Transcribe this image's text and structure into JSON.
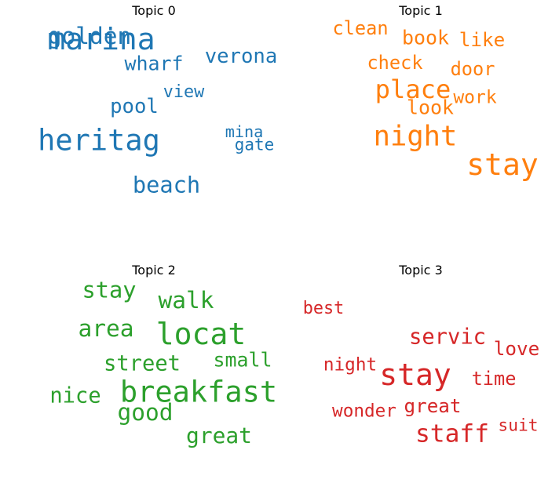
{
  "chart_data": [
    {
      "type": "wordcloud",
      "title": "Topic 0",
      "color": "#1f77b4",
      "words": [
        {
          "text": "marina",
          "weight": 1.0
        },
        {
          "text": "heritag",
          "weight": 0.98
        },
        {
          "text": "golden",
          "weight": 0.82
        },
        {
          "text": "beach",
          "weight": 0.8
        },
        {
          "text": "verona",
          "weight": 0.72
        },
        {
          "text": "pool",
          "weight": 0.72
        },
        {
          "text": "wharf",
          "weight": 0.7
        },
        {
          "text": "view",
          "weight": 0.6
        },
        {
          "text": "gate",
          "weight": 0.57
        },
        {
          "text": "mina",
          "weight": 0.54
        }
      ]
    },
    {
      "type": "wordcloud",
      "title": "Topic 1",
      "color": "#ff7f0e",
      "words": [
        {
          "text": "stay",
          "weight": 1.0
        },
        {
          "text": "night",
          "weight": 0.95
        },
        {
          "text": "place",
          "weight": 0.88
        },
        {
          "text": "book",
          "weight": 0.7
        },
        {
          "text": "look",
          "weight": 0.7
        },
        {
          "text": "like",
          "weight": 0.68
        },
        {
          "text": "clean",
          "weight": 0.66
        },
        {
          "text": "check",
          "weight": 0.66
        },
        {
          "text": "door",
          "weight": 0.66
        },
        {
          "text": "work",
          "weight": 0.64
        }
      ]
    },
    {
      "type": "wordcloud",
      "title": "Topic 2",
      "color": "#2ca02c",
      "words": [
        {
          "text": "locat",
          "weight": 1.0
        },
        {
          "text": "breakfast",
          "weight": 0.98
        },
        {
          "text": "walk",
          "weight": 0.82
        },
        {
          "text": "area",
          "weight": 0.82
        },
        {
          "text": "good",
          "weight": 0.82
        },
        {
          "text": "stay",
          "weight": 0.8
        },
        {
          "text": "great",
          "weight": 0.78
        },
        {
          "text": "street",
          "weight": 0.76
        },
        {
          "text": "nice",
          "weight": 0.76
        },
        {
          "text": "small",
          "weight": 0.7
        }
      ]
    },
    {
      "type": "wordcloud",
      "title": "Topic 3",
      "color": "#d62728",
      "words": [
        {
          "text": "stay",
          "weight": 1.0
        },
        {
          "text": "staff",
          "weight": 0.86
        },
        {
          "text": "servic",
          "weight": 0.76
        },
        {
          "text": "great",
          "weight": 0.68
        },
        {
          "text": "love",
          "weight": 0.68
        },
        {
          "text": "time",
          "weight": 0.66
        },
        {
          "text": "wonder",
          "weight": 0.63
        },
        {
          "text": "night",
          "weight": 0.63
        },
        {
          "text": "best",
          "weight": 0.6
        },
        {
          "text": "suit",
          "weight": 0.58
        }
      ]
    }
  ]
}
